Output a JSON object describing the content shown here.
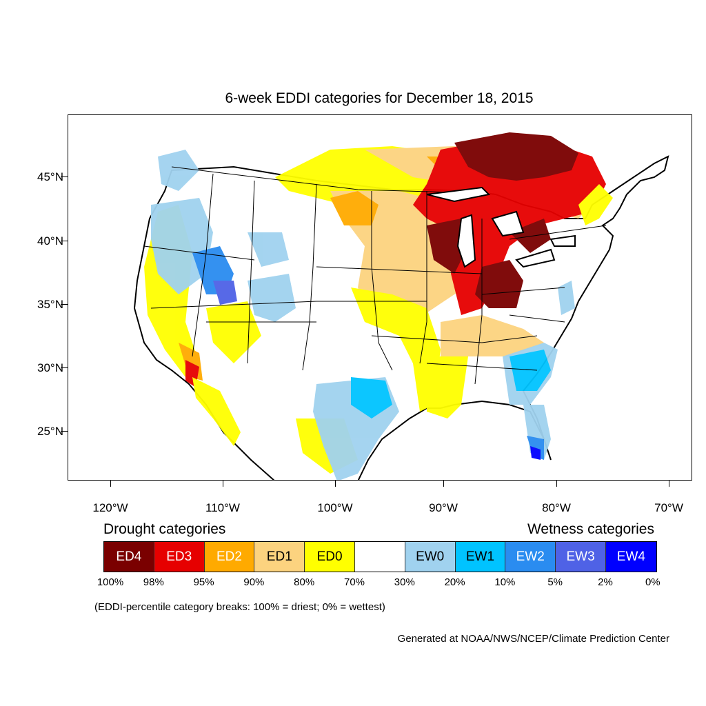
{
  "title": "6-week EDDI categories for December 18, 2015",
  "lat_labels": [
    "45°N",
    "40°N",
    "35°N",
    "30°N",
    "25°N"
  ],
  "lon_labels": [
    "120°W",
    "110°W",
    "100°W",
    "90°W",
    "80°W",
    "70°W"
  ],
  "legend": {
    "drought_heading": "Drought categories",
    "wetness_heading": "Wetness categories",
    "categories": [
      {
        "label": "ED4",
        "color": "#7a0000",
        "text_color": "#ffffff"
      },
      {
        "label": "ED3",
        "color": "#e60000",
        "text_color": "#ffffff"
      },
      {
        "label": "ED2",
        "color": "#ffaa00",
        "text_color": "#ffffff"
      },
      {
        "label": "ED1",
        "color": "#fcd37f",
        "text_color": "#000000"
      },
      {
        "label": "ED0",
        "color": "#ffff00",
        "text_color": "#000000"
      },
      {
        "label": "",
        "color": "#ffffff",
        "text_color": "#000000"
      },
      {
        "label": "EW0",
        "color": "#a0d2ef",
        "text_color": "#000000"
      },
      {
        "label": "EW1",
        "color": "#00c3ff",
        "text_color": "#000000"
      },
      {
        "label": "EW2",
        "color": "#2a8cf0",
        "text_color": "#ffffff"
      },
      {
        "label": "EW3",
        "color": "#4f62e6",
        "text_color": "#ffffff"
      },
      {
        "label": "EW4",
        "color": "#0000ff",
        "text_color": "#ffffff"
      }
    ],
    "breaks": [
      "100%",
      "98%",
      "95%",
      "90%",
      "80%",
      "70%",
      "30%",
      "20%",
      "10%",
      "5%",
      "2%",
      "0%"
    ]
  },
  "note": "(EDDI-percentile category breaks: 100% = driest; 0% = wettest)",
  "credit": "Generated at NOAA/NWS/NCEP/Climate Prediction Center"
}
